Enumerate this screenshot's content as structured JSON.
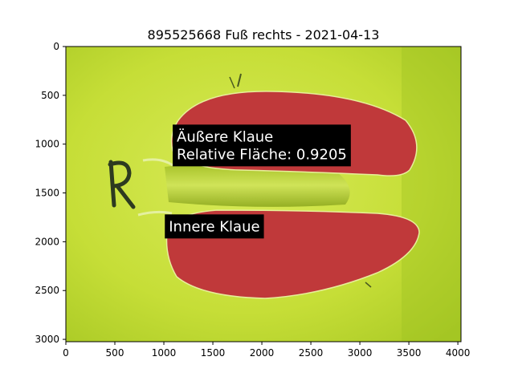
{
  "chart_data": {
    "type": "image",
    "title": "895525668 Fuß rechts - 2021-04-13",
    "xlabel": "",
    "ylabel": "",
    "xlim": [
      0,
      4032
    ],
    "ylim": [
      3024,
      0
    ],
    "x_ticks": [
      0,
      500,
      1000,
      1500,
      2000,
      2500,
      3000,
      3500,
      4000
    ],
    "y_ticks": [
      0,
      500,
      1000,
      1500,
      2000,
      2500,
      3000
    ],
    "grid": false,
    "annotations": [
      {
        "lines": [
          "Äußere Klaue",
          "Relative Fläche: 0.9205"
        ],
        "x": 1090,
        "y": 800
      },
      {
        "lines": [
          "Innere Klaue"
        ],
        "x": 1010,
        "y": 1720
      }
    ],
    "regions": [
      {
        "name": "Äußere Klaue",
        "color": "#c0393a"
      },
      {
        "name": "Innere Klaue",
        "color": "#c0393a"
      }
    ],
    "colors": {
      "background": "#c8e03a",
      "mask": "#c0393a",
      "annotation_box": "#000000",
      "annotation_text": "#ffffff"
    }
  }
}
